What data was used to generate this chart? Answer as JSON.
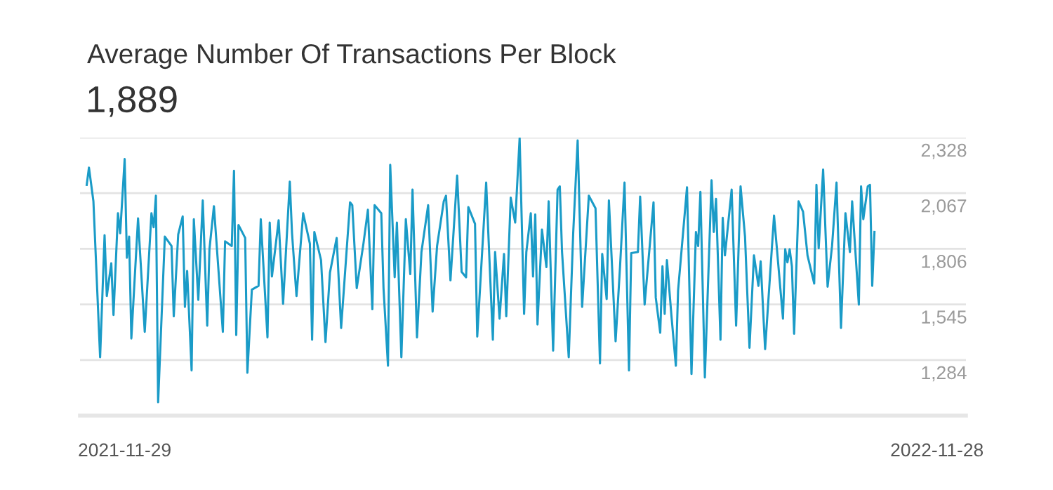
{
  "chart_data": {
    "type": "line",
    "title": "Average Number Of Transactions Per Block",
    "subtitle": "1,889",
    "x": [
      "2021-11-12",
      "2021-11-13",
      "2021-11-15",
      "2021-11-18",
      "2021-11-20",
      "2021-11-21",
      "2021-11-23",
      "2021-11-24",
      "2021-11-26",
      "2021-11-27",
      "2021-11-29",
      "2021-11-30",
      "2021-12-01",
      "2021-12-02",
      "2021-12-05",
      "2021-12-08",
      "2021-12-11",
      "2021-12-12",
      "2021-12-13",
      "2021-12-14",
      "2021-12-17",
      "2021-12-20",
      "2021-12-21",
      "2021-12-23",
      "2021-12-25",
      "2021-12-26",
      "2021-12-27",
      "2021-12-29",
      "2021-12-30",
      "2022-01-01",
      "2022-01-03",
      "2022-01-05",
      "2022-01-06",
      "2022-01-08",
      "2022-01-12",
      "2022-01-13",
      "2022-01-16",
      "2022-01-17",
      "2022-01-18",
      "2022-01-19",
      "2022-01-22",
      "2022-01-23",
      "2022-01-25",
      "2022-01-28",
      "2022-01-29",
      "2022-02-01",
      "2022-02-02",
      "2022-02-03",
      "2022-02-06",
      "2022-02-08",
      "2022-02-11",
      "2022-02-12",
      "2022-02-14",
      "2022-02-17",
      "2022-02-20",
      "2022-02-21",
      "2022-02-22",
      "2022-02-25",
      "2022-02-27",
      "2022-03-01",
      "2022-03-04",
      "2022-03-06",
      "2022-03-10",
      "2022-03-11",
      "2022-03-13",
      "2022-03-16",
      "2022-03-18",
      "2022-03-20",
      "2022-03-21",
      "2022-03-24",
      "2022-03-25",
      "2022-03-27",
      "2022-03-28",
      "2022-03-30",
      "2022-03-31",
      "2022-04-02",
      "2022-04-04",
      "2022-04-06",
      "2022-04-07",
      "2022-04-09",
      "2022-04-11",
      "2022-04-14",
      "2022-04-16",
      "2022-04-18",
      "2022-04-21",
      "2022-04-22",
      "2022-04-24",
      "2022-04-27",
      "2022-04-29",
      "2022-05-01",
      "2022-05-02",
      "2022-05-05",
      "2022-05-06",
      "2022-05-10",
      "2022-05-13",
      "2022-05-14",
      "2022-05-16",
      "2022-05-18",
      "2022-05-19",
      "2022-05-21",
      "2022-05-23",
      "2022-05-25",
      "2022-05-27",
      "2022-05-28",
      "2022-05-30",
      "2022-05-31",
      "2022-06-01",
      "2022-06-02",
      "2022-06-04",
      "2022-06-06",
      "2022-06-07",
      "2022-06-09",
      "2022-06-11",
      "2022-06-12",
      "2022-06-13",
      "2022-06-16",
      "2022-06-18",
      "2022-06-20",
      "2022-06-22",
      "2022-06-25",
      "2022-06-28",
      "2022-06-30",
      "2022-07-01",
      "2022-07-03",
      "2022-07-04",
      "2022-07-07",
      "2022-07-09",
      "2022-07-11",
      "2022-07-13",
      "2022-07-14",
      "2022-07-17",
      "2022-07-18",
      "2022-07-20",
      "2022-07-24",
      "2022-07-25",
      "2022-07-27",
      "2022-07-28",
      "2022-07-29",
      "2022-07-30",
      "2022-08-01",
      "2022-08-03",
      "2022-08-04",
      "2022-08-08",
      "2022-08-10",
      "2022-08-12",
      "2022-08-13",
      "2022-08-14",
      "2022-08-16",
      "2022-08-19",
      "2022-08-20",
      "2022-08-21",
      "2022-08-23",
      "2022-08-24",
      "2022-08-25",
      "2022-08-28",
      "2022-08-30",
      "2022-09-01",
      "2022-09-03",
      "2022-09-05",
      "2022-09-07",
      "2022-09-09",
      "2022-09-10",
      "2022-09-12",
      "2022-09-16",
      "2022-09-20",
      "2022-09-21",
      "2022-09-22",
      "2022-09-23",
      "2022-09-24",
      "2022-09-25",
      "2022-09-27",
      "2022-09-29",
      "2022-10-01",
      "2022-10-04",
      "2022-10-05",
      "2022-10-06",
      "2022-10-08",
      "2022-10-10",
      "2022-10-12",
      "2022-10-14",
      "2022-10-16",
      "2022-10-18",
      "2022-10-20",
      "2022-10-21",
      "2022-10-24",
      "2022-10-25",
      "2022-10-26",
      "2022-10-28",
      "2022-10-29",
      "2022-10-30",
      "2022-10-31"
    ],
    "series": [
      {
        "color": "#1a9bc7",
        "values": [
          2106,
          2187,
          2029,
          1297,
          1870,
          1584,
          1738,
          1495,
          1973,
          1879,
          2227,
          1764,
          1863,
          1385,
          1949,
          1416,
          1973,
          1907,
          2055,
          1086,
          1863,
          1819,
          1489,
          1874,
          1958,
          1533,
          1702,
          1235,
          1945,
          1566,
          2033,
          1445,
          1804,
          2006,
          1416,
          1841,
          1819,
          2172,
          1401,
          1918,
          1857,
          1224,
          1614,
          1632,
          1945,
          1390,
          1929,
          1676,
          1940,
          1548,
          2121,
          1879,
          1584,
          1973,
          1830,
          1379,
          1885,
          1753,
          1368,
          1694,
          1857,
          1434,
          2024,
          2011,
          1621,
          1830,
          1989,
          1522,
          2011,
          1973,
          1621,
          1257,
          2200,
          1672,
          1929,
          1297,
          1945,
          1687,
          2084,
          1390,
          1791,
          2011,
          1511,
          1819,
          2029,
          2055,
          1658,
          2150,
          1698,
          1672,
          2002,
          1923,
          1394,
          2117,
          1379,
          1791,
          1478,
          1782,
          1489,
          2046,
          1929,
          2326,
          1500,
          1791,
          1973,
          1676,
          1967,
          1451,
          1896,
          1720,
          2029,
          1328,
          2084,
          2099,
          1791,
          1297,
          1879,
          2315,
          1533,
          2055,
          1996,
          1268,
          1782,
          1570,
          2033,
          1372,
          1724,
          2117,
          1235,
          1786,
          1791,
          2051,
          1544,
          2024,
          1577,
          1412,
          1724,
          1500,
          1753,
          1495,
          1257,
          1610,
          2095,
          1218,
          1885,
          1819,
          2073,
          1202,
          2128,
          1885,
          2040,
          1379,
          1951,
          1775,
          2084,
          1445,
          2099,
          1863,
          1341,
          1775,
          1632,
          1747,
          1335,
          1962,
          1478,
          1804,
          1742,
          1804,
          1724,
          1407,
          2029,
          1980,
          1775,
          1643,
          2106,
          1808,
          2178,
          1628,
          1819,
          2117,
          1434,
          1973,
          1791,
          2029,
          1544,
          2099,
          1945,
          2099,
          2106,
          1632,
          1885
        ]
      }
    ],
    "xlim": [
      "2021-11-09",
      "2022-12-11"
    ],
    "xticks": [
      {
        "value": "2021-11-29",
        "label": "2021-11-29"
      },
      {
        "value": "2022-11-28",
        "label": "2022-11-28"
      }
    ],
    "ylim": [
      1023,
      2328
    ],
    "yticks": [
      {
        "value": 1284,
        "label": "1,284"
      },
      {
        "value": 1545,
        "label": "1,545"
      },
      {
        "value": 1806,
        "label": "1,806"
      },
      {
        "value": 2067,
        "label": "2,067"
      },
      {
        "value": 2328,
        "label": "2,328"
      }
    ],
    "grid": "y",
    "legend": false,
    "marker": "none",
    "line_style": "solid"
  }
}
